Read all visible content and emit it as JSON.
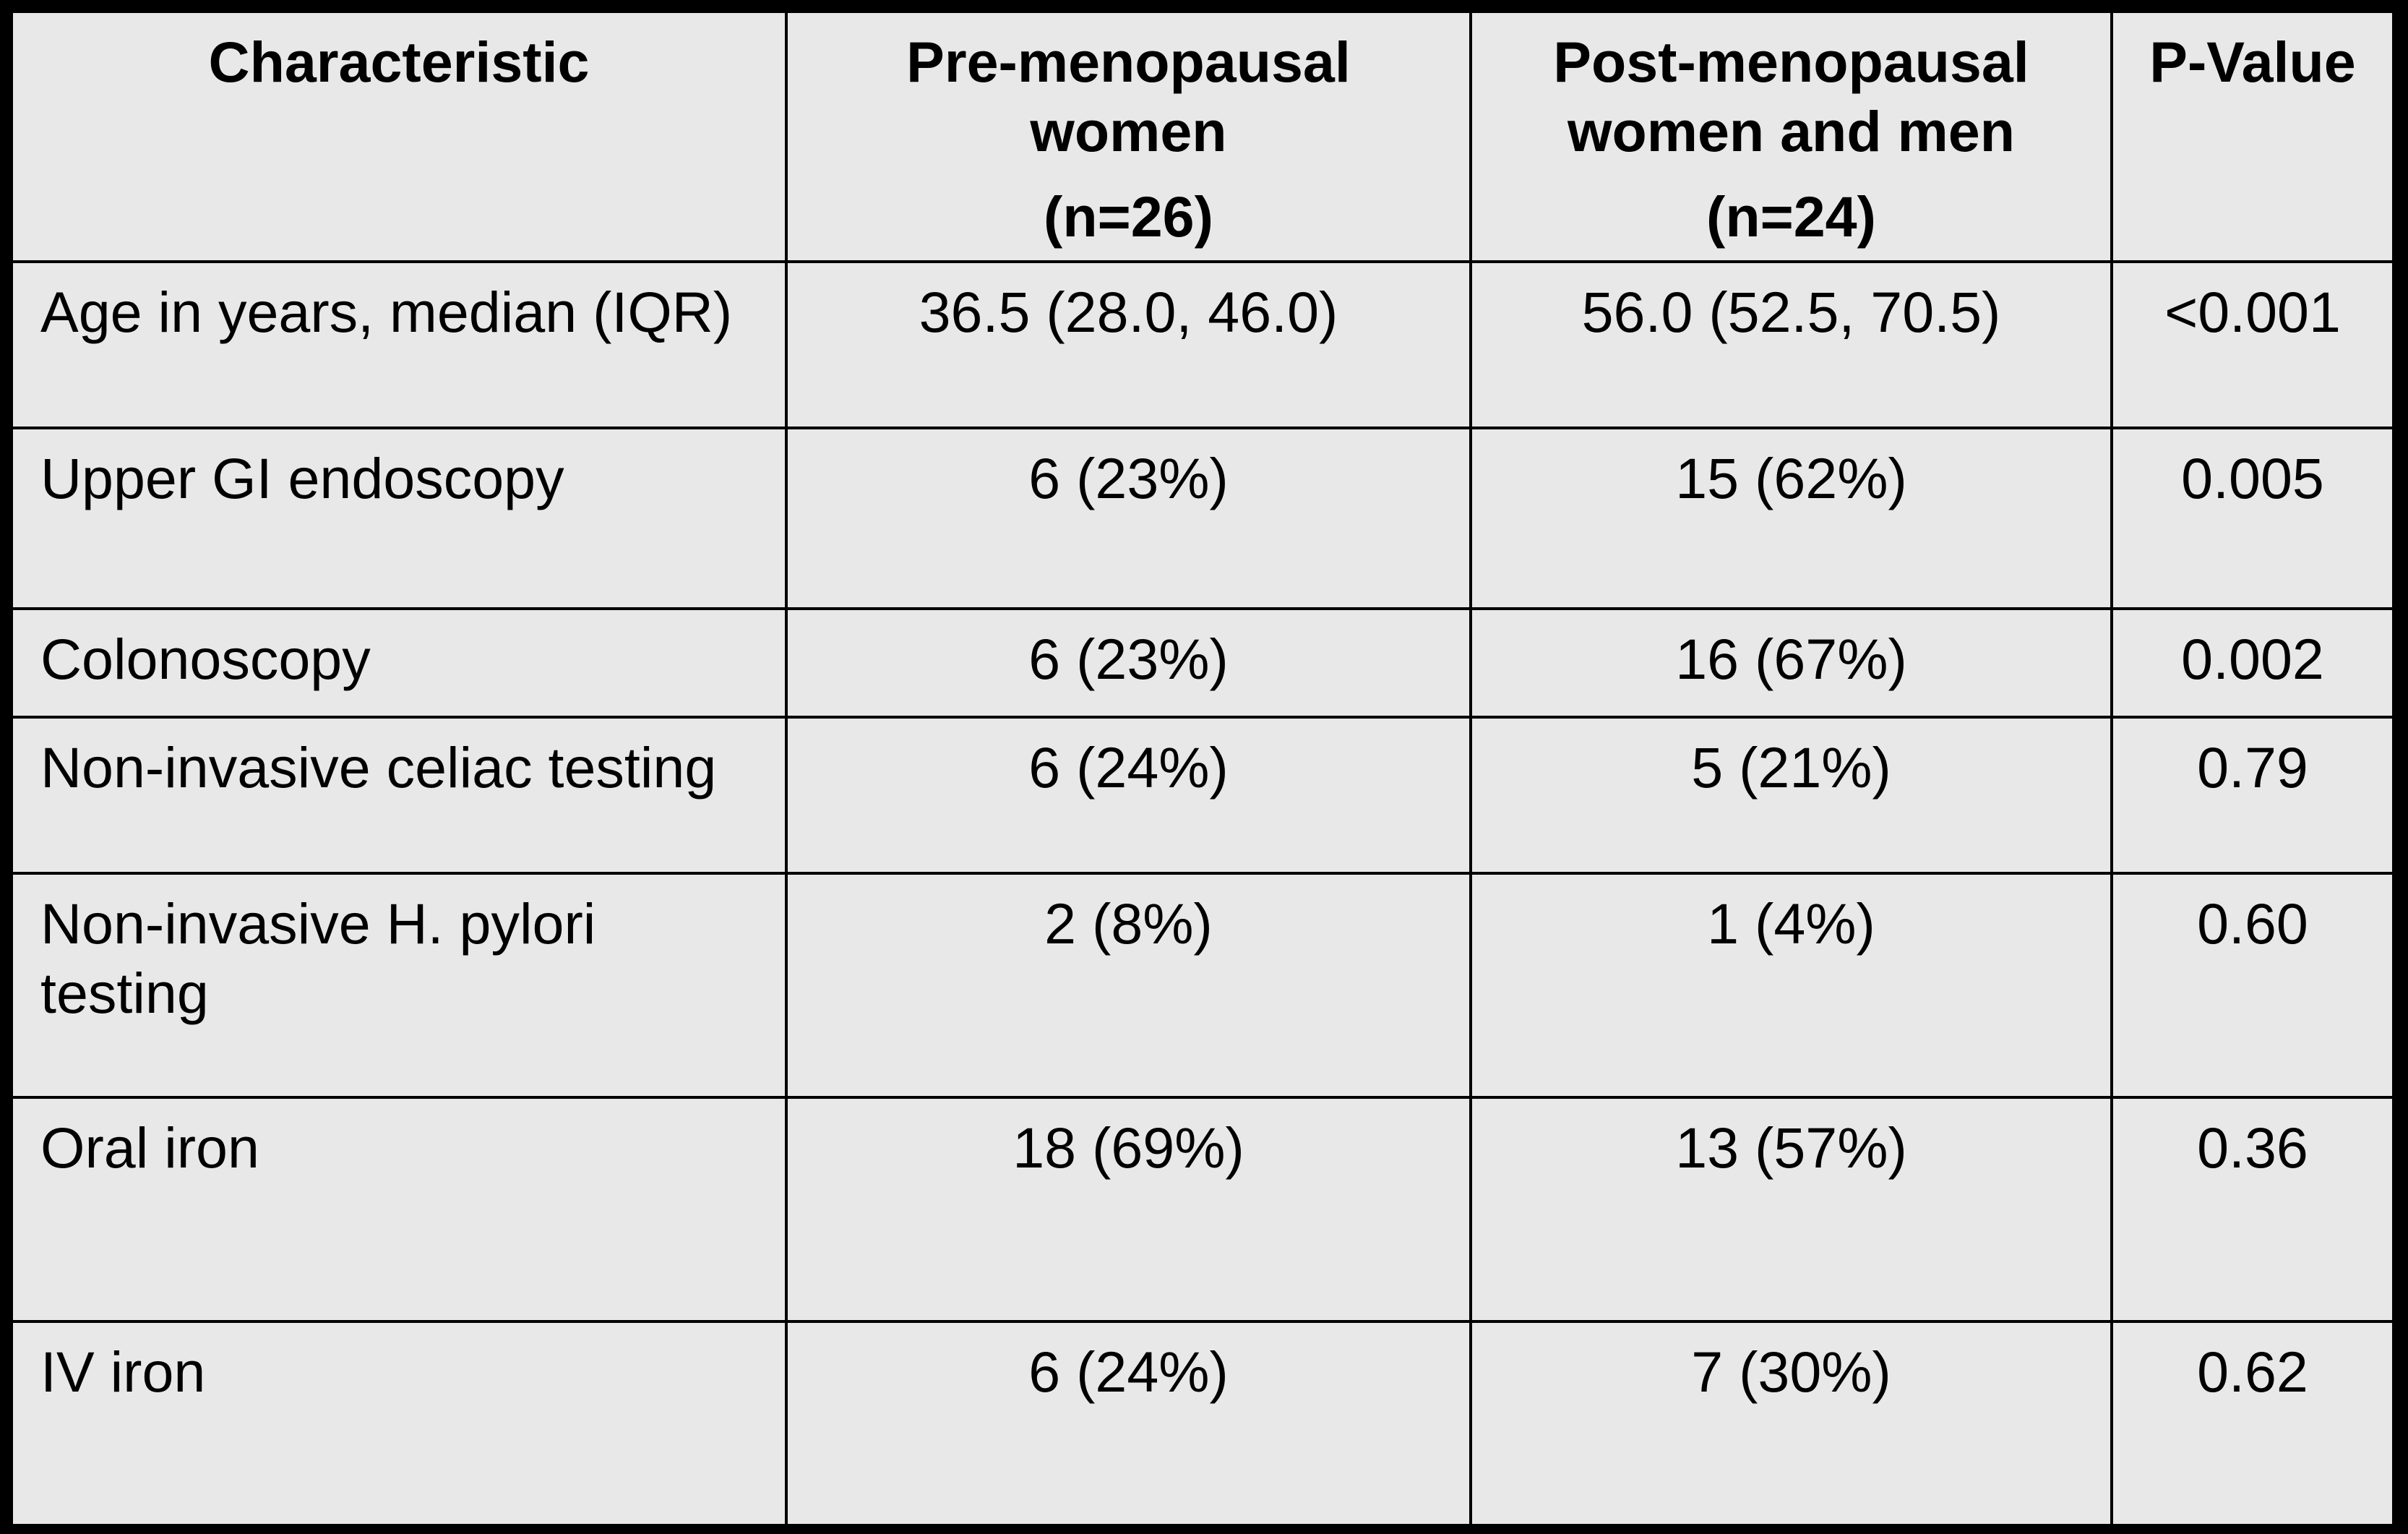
{
  "table": {
    "headers": {
      "characteristic": "Characteristic",
      "pre_line1": "Pre-menopausal",
      "pre_line2": "women",
      "pre_n": "(n=26)",
      "post_line1": "Post-menopausal",
      "post_line2": "women and men",
      "post_n": "(n=24)",
      "p_value": "P-Value"
    },
    "rows": [
      {
        "label": "Age in years, median (IQR)",
        "pre": "36.5 (28.0, 46.0)",
        "post": "56.0 (52.5, 70.5)",
        "p": "<0.001"
      },
      {
        "label": "Upper GI endoscopy",
        "pre": "6 (23%)",
        "post": "15 (62%)",
        "p": "0.005"
      },
      {
        "label": "Colonoscopy",
        "pre": "6 (23%)",
        "post": "16 (67%)",
        "p": "0.002"
      },
      {
        "label": "Non-invasive celiac testing",
        "pre": "6 (24%)",
        "post": "5 (21%)",
        "p": "0.79"
      },
      {
        "label": "Non-invasive H. pylori testing",
        "pre": "2 (8%)",
        "post": "1 (4%)",
        "p": "0.60"
      },
      {
        "label": "Oral iron",
        "pre": "18 (69%)",
        "post": "13 (57%)",
        "p": "0.36"
      },
      {
        "label": "IV iron",
        "pre": "6 (24%)",
        "post": "7 (30%)",
        "p": "0.62"
      }
    ]
  },
  "colors": {
    "cell_background": "#e8e8e8",
    "border": "#000000",
    "text": "#000000"
  }
}
